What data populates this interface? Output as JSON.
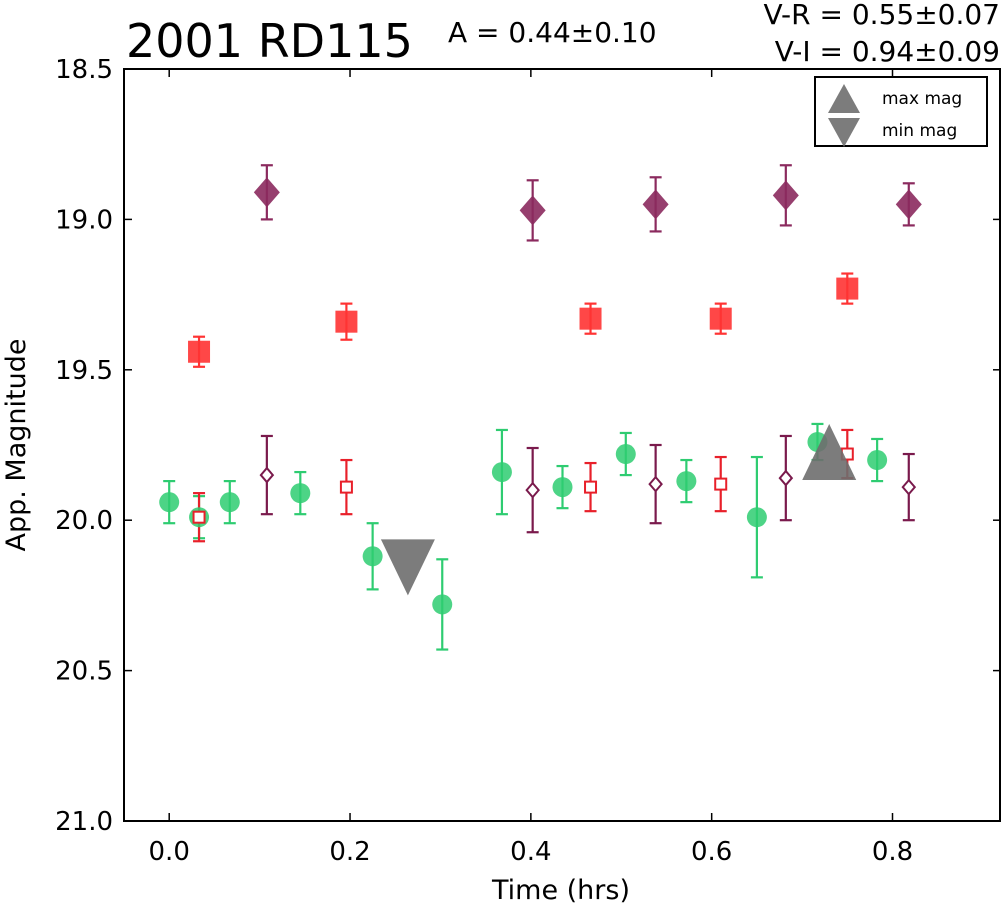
{
  "chart_data": {
    "type": "scatter",
    "title": "2001 RD115",
    "annotations": {
      "amplitude": "A  = 0.44±0.10",
      "v_r": "V-R = 0.55±0.07",
      "v_i": "V-I  = 0.94±0.09"
    },
    "xlabel": "Time (hrs)",
    "ylabel": "App. Magnitude",
    "xlim": [
      -0.05,
      0.92
    ],
    "ylim": [
      21.0,
      18.5
    ],
    "y_inverted": true,
    "xticks": [
      "0.0",
      "0.2",
      "0.4",
      "0.6",
      "0.8"
    ],
    "xtick_values": [
      0.0,
      0.2,
      0.4,
      0.6,
      0.8
    ],
    "yticks": [
      "18.5",
      "19.0",
      "19.5",
      "20.0",
      "20.5",
      "21.0"
    ],
    "ytick_values": [
      18.5,
      19.0,
      19.5,
      20.0,
      20.5,
      21.0
    ],
    "grid": false,
    "legend_position": "top-right",
    "legend": [
      {
        "label": "max mag",
        "marker": "triangle-up"
      },
      {
        "label": "min mag",
        "marker": "triangle-down"
      }
    ],
    "series": [
      {
        "marker": "circle",
        "color": "#2ecc71",
        "x": [
          0.0,
          0.033,
          0.067,
          0.145,
          0.225,
          0.302,
          0.368,
          0.435,
          0.505,
          0.572,
          0.65,
          0.717,
          0.783
        ],
        "y": [
          19.94,
          19.99,
          19.94,
          19.91,
          20.12,
          20.28,
          19.84,
          19.89,
          19.78,
          19.87,
          19.99,
          19.74,
          19.8
        ],
        "err": [
          0.07,
          0.07,
          0.07,
          0.07,
          0.11,
          0.15,
          0.14,
          0.07,
          0.07,
          0.07,
          0.2,
          0.06,
          0.07
        ]
      },
      {
        "marker": "square",
        "color": "#ff3333",
        "x": [
          0.033,
          0.196,
          0.466,
          0.61,
          0.75
        ],
        "y": [
          19.44,
          19.34,
          19.33,
          19.33,
          19.23
        ],
        "err": [
          0.05,
          0.06,
          0.05,
          0.05,
          0.05
        ]
      },
      {
        "marker": "square-open",
        "color": "#e8202a",
        "x": [
          0.033,
          0.196,
          0.466,
          0.61,
          0.75
        ],
        "y": [
          19.99,
          19.89,
          19.89,
          19.88,
          19.78
        ],
        "err": [
          0.08,
          0.09,
          0.08,
          0.09,
          0.08
        ]
      },
      {
        "marker": "diamond",
        "color": "#8b2a5e",
        "x": [
          0.108,
          0.402,
          0.538,
          0.682,
          0.818
        ],
        "y": [
          18.91,
          18.97,
          18.95,
          18.92,
          18.95
        ],
        "err": [
          0.09,
          0.1,
          0.09,
          0.1,
          0.07
        ]
      },
      {
        "marker": "diamond-open",
        "color": "#7a1a4c",
        "x": [
          0.108,
          0.402,
          0.538,
          0.682,
          0.818
        ],
        "y": [
          19.85,
          19.9,
          19.88,
          19.86,
          19.89
        ],
        "err": [
          0.13,
          0.14,
          0.13,
          0.14,
          0.11
        ]
      }
    ],
    "extrema": {
      "max_mag": {
        "x": 0.73,
        "y": 19.78
      },
      "min_mag": {
        "x": 0.264,
        "y": 20.15
      }
    }
  }
}
